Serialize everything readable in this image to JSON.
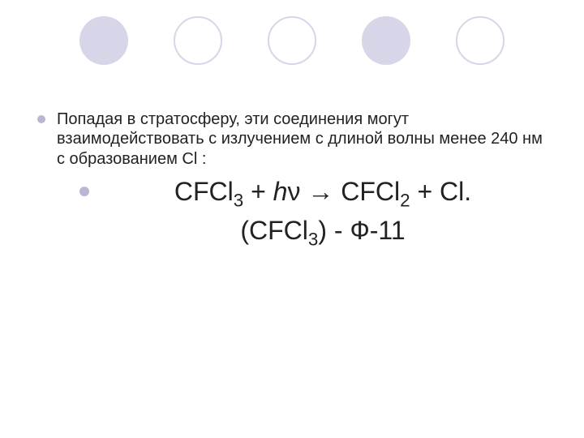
{
  "decor": {
    "count": 5,
    "colors": [
      "#d7d5e8",
      "#d7d5e8",
      "#d7d5e8",
      "#d7d5e8",
      "#d7d5e8"
    ],
    "pattern": [
      "filled",
      "outline",
      "outline",
      "filled",
      "outline"
    ],
    "outline_border_color": "#d7d5e8",
    "outline_border_width": 2
  },
  "bullets": {
    "lvl1_color": "#b9b6d6",
    "lvl2_color": "#b9b6d6"
  },
  "text": {
    "para1": "Попадая в стратосферу, эти соединения могут взаимодействовать с излучением с длиной волны менее 240 нм  с образованием Cl :",
    "eq_cfcl3": "CFCl",
    "eq_sub3": "3",
    "eq_plus": " + ",
    "eq_h": "h",
    "eq_nu": "ν",
    "eq_arrow": " → ",
    "eq_cfcl2": "CFCl",
    "eq_sub2": "2",
    "eq_plus2": " + ",
    "eq_cl_dot": "Cl.",
    "line2_open": "(",
    "line2_cfcl3": "CFCl",
    "line2_sub3": "3",
    "line2_close": ")",
    "line2_rest": " - Ф-11"
  }
}
